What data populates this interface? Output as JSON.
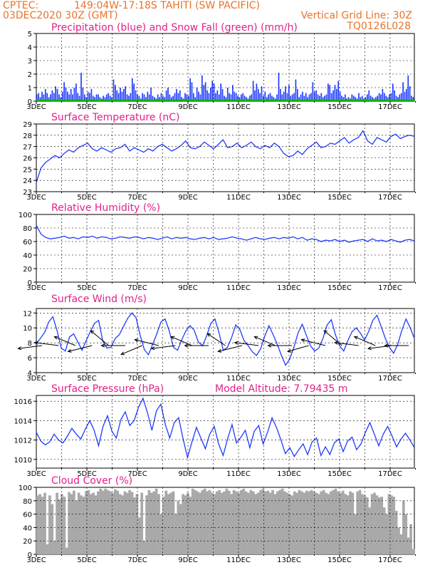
{
  "header": {
    "source": "CPTEC:",
    "location": "149:04W-17:18S  TAHITI (SW PACIFIC)",
    "run": "03DEC2020 30Z (GMT)",
    "grid_note": "Vertical Grid Line: 30Z",
    "model": "TQ0126L028"
  },
  "colors": {
    "header": "#e8742a",
    "title": "#e0218a",
    "precip": "#1f3bff",
    "snow": "#00b000",
    "line": "#1f3bff",
    "cloud": "#a9a9a9",
    "grid": "#000000"
  },
  "chart_data": [
    {
      "type": "bar",
      "title": "Precipitation (blue) and Snow Fall (green) (mm/h)",
      "x_ticks": [
        "3DEC",
        "5DEC",
        "7DEC",
        "9DEC",
        "11DEC",
        "13DEC",
        "15DEC",
        "17DEC"
      ],
      "y_ticks": [
        "0",
        "1",
        "2",
        "3",
        "4",
        "5"
      ],
      "ylim": [
        0,
        5
      ],
      "grid": true,
      "series": [
        {
          "values": [
            0.5,
            0.6,
            0.3,
            0.7,
            0.5,
            0.9,
            0.6,
            0.3,
            0.5,
            0.8,
            0.6,
            1.1,
            0.9,
            0.5,
            0.3,
            0.7,
            1.4,
            1.0,
            0.7,
            0.5,
            0.9,
            0.5,
            1.0,
            1.3,
            0.6,
            0.4,
            2.1,
            1.0,
            0.5,
            0.3,
            0.7,
            0.6,
            0.9,
            0.4,
            0.3,
            0.5,
            0.5,
            0.3,
            0.2,
            0.4,
            0.3,
            0.5,
            0.6,
            0.4,
            0.3,
            1.6,
            1.2,
            0.8,
            0.6,
            1.0,
            0.7,
            0.9,
            1.1,
            0.5,
            0.4,
            0.6,
            1.7,
            1.3,
            0.8,
            0.5,
            0.4,
            0.2,
            0.6,
            0.5,
            0.3,
            0.7,
            0.5,
            1.0,
            0.4,
            0.3,
            0.2,
            0.5,
            0.3,
            0.6,
            0.4,
            0.3,
            0.8,
            1.0,
            0.5,
            0.3,
            0.4,
            0.6,
            0.9,
            0.6,
            0.8,
            0.3,
            0.2,
            0.6,
            0.5,
            0.4,
            1.7,
            1.4,
            0.6,
            0.3,
            1.0,
            0.7,
            0.5,
            1.9,
            1.2,
            1.4,
            0.8,
            0.6,
            1.0,
            1.5,
            1.3,
            0.6,
            0.8,
            0.5,
            1.3,
            0.9,
            0.4,
            0.3,
            1.0,
            0.6,
            0.5,
            1.2,
            0.7,
            0.6,
            0.4,
            0.3,
            0.5,
            0.6,
            0.4,
            0.3,
            0.2,
            0.4,
            0.5,
            1.5,
            0.8,
            1.3,
            0.9,
            0.6,
            1.1,
            0.4,
            0.7,
            0.3,
            0.5,
            0.6,
            0.4,
            0.3,
            0.2,
            0.5,
            2.1,
            0.9,
            0.5,
            0.7,
            1.1,
            0.6,
            1.2,
            0.4,
            0.5,
            0.6,
            1.6,
            0.9,
            0.3,
            0.5,
            0.7,
            0.4,
            0.6,
            0.3,
            0.5,
            0.6,
            1.4,
            0.7,
            0.8,
            0.5,
            0.4,
            0.6,
            0.3,
            0.4,
            0.5,
            1.3,
            1.2,
            0.6,
            0.8,
            1.2,
            0.9,
            1.5,
            0.7,
            0.4,
            0.3,
            0.5,
            0.2,
            0.3,
            0.2,
            0.5,
            0.4,
            0.3,
            0.2,
            0.6,
            0.3,
            0.4,
            0.2,
            0.3,
            0.5,
            0.8,
            0.4,
            0.3,
            0.2,
            0.3,
            0.4,
            0.6,
            0.5,
            0.9,
            0.6,
            0.4,
            0.3,
            0.5,
            0.6,
            1.3,
            0.8,
            0.4,
            0.3,
            0.5,
            0.6,
            1.4,
            0.7,
            0.9,
            1.9,
            1.1,
            0.4,
            0.3
          ]
        }
      ]
    },
    {
      "type": "line",
      "title": "Surface Temperature (nC)",
      "x_ticks": [
        "3DEC",
        "5DEC",
        "7DEC",
        "9DEC",
        "11DEC",
        "13DEC",
        "15DEC",
        "17DEC"
      ],
      "y_ticks": [
        "23",
        "24",
        "25",
        "26",
        "27",
        "28",
        "29"
      ],
      "ylim": [
        23,
        29
      ],
      "grid": true,
      "series": [
        {
          "values": [
            23.8,
            25.1,
            25.6,
            25.9,
            26.2,
            26.0,
            26.4,
            26.7,
            26.5,
            26.9,
            27.1,
            27.3,
            26.8,
            26.6,
            26.9,
            26.7,
            26.5,
            26.8,
            26.9,
            27.2,
            26.6,
            26.9,
            26.7,
            26.5,
            26.8,
            26.6,
            27.0,
            27.2,
            26.9,
            26.6,
            26.8,
            27.1,
            27.5,
            26.9,
            26.8,
            27.0,
            27.4,
            27.1,
            26.8,
            27.2,
            27.6,
            26.9,
            27.0,
            27.3,
            26.9,
            27.1,
            27.4,
            27.0,
            26.8,
            27.1,
            26.9,
            27.3,
            27.0,
            26.4,
            26.1,
            26.2,
            26.6,
            26.3,
            26.8,
            27.1,
            27.4,
            26.9,
            27.0,
            27.3,
            27.2,
            27.5,
            27.8,
            27.3,
            27.6,
            27.8,
            28.4,
            27.5,
            27.2,
            27.8,
            27.6,
            27.4,
            27.9,
            28.1,
            27.7,
            27.9,
            28.0,
            27.9
          ]
        }
      ]
    },
    {
      "type": "line",
      "title": "Relative Humidity (%)",
      "x_ticks": [
        "3DEC",
        "5DEC",
        "7DEC",
        "9DEC",
        "11DEC",
        "13DEC",
        "15DEC",
        "17DEC"
      ],
      "y_ticks": [
        "0",
        "20",
        "40",
        "60",
        "80",
        "100"
      ],
      "ylim": [
        0,
        100
      ],
      "grid": true,
      "series": [
        {
          "values": [
            84,
            71,
            66,
            64,
            65,
            66,
            68,
            65,
            66,
            64,
            67,
            66,
            68,
            65,
            67,
            66,
            64,
            65,
            67,
            66,
            65,
            67,
            66,
            64,
            66,
            65,
            63,
            65,
            67,
            64,
            66,
            65,
            66,
            64,
            63,
            65,
            66,
            64,
            66,
            63,
            64,
            65,
            67,
            65,
            64,
            62,
            64,
            66,
            64,
            63,
            65,
            66,
            64,
            66,
            65,
            67,
            64,
            66,
            62,
            64,
            63,
            60,
            62,
            61,
            63,
            60,
            62,
            59,
            61,
            62,
            63,
            60,
            64,
            61,
            62,
            60,
            63,
            61,
            59,
            62,
            63,
            61
          ]
        }
      ]
    },
    {
      "type": "line",
      "title": "Surface Wind (m/s)",
      "x_ticks": [
        "3DEC",
        "5DEC",
        "7DEC",
        "9DEC",
        "11DEC",
        "13DEC",
        "15DEC",
        "17DEC"
      ],
      "y_ticks": [
        "4",
        "6",
        "8",
        "10",
        "12"
      ],
      "ylim": [
        4,
        12.6
      ],
      "grid": true,
      "series": [
        {
          "values": [
            7.9,
            8.6,
            9.4,
            10.8,
            11.5,
            9.6,
            7.3,
            6.9,
            8.8,
            9.2,
            8.1,
            7.0,
            8.3,
            9.5,
            10.6,
            11.0,
            8.2,
            7.3,
            7.4,
            8.6,
            9.1,
            10.2,
            11.3,
            12.0,
            11.4,
            9.0,
            7.1,
            6.4,
            7.8,
            9.2,
            10.8,
            11.2,
            9.6,
            7.4,
            7.0,
            8.4,
            9.6,
            10.3,
            9.7,
            8.1,
            7.6,
            8.9,
            10.6,
            11.2,
            9.3,
            7.0,
            7.4,
            8.7,
            10.4,
            9.8,
            8.3,
            7.6,
            6.8,
            6.3,
            7.2,
            8.9,
            10.3,
            9.1,
            7.8,
            6.3,
            5.0,
            5.8,
            7.4,
            9.3,
            10.5,
            9.0,
            7.6,
            6.9,
            7.3,
            8.6,
            10.4,
            11.1,
            9.1,
            7.6,
            6.9,
            8.3,
            9.5,
            10.0,
            9.3,
            8.4,
            9.5,
            11.0,
            11.7,
            10.2,
            8.6,
            7.4,
            6.6,
            7.8,
            9.7,
            11.2,
            10.0,
            8.6
          ]
        }
      ],
      "vectors": [
        {
          "u": -8,
          "v": -1
        },
        {
          "u": -8,
          "v": 1
        },
        {
          "u": -7,
          "v": 3
        },
        {
          "u": -8,
          "v": -2
        },
        {
          "u": -6,
          "v": 5
        },
        {
          "u": -8,
          "v": 0
        },
        {
          "u": -7,
          "v": -3
        },
        {
          "u": -8,
          "v": 2
        },
        {
          "u": -8,
          "v": -1
        },
        {
          "u": -7,
          "v": 3
        },
        {
          "u": -8,
          "v": 0
        },
        {
          "u": -6,
          "v": 4
        },
        {
          "u": -8,
          "v": -2
        },
        {
          "u": -8,
          "v": 1
        },
        {
          "u": -7,
          "v": 3
        },
        {
          "u": -8,
          "v": 0
        },
        {
          "u": -7,
          "v": -2
        },
        {
          "u": -8,
          "v": 2
        },
        {
          "u": -6,
          "v": 5
        },
        {
          "u": -8,
          "v": 1
        },
        {
          "u": -7,
          "v": 3
        },
        {
          "u": -8,
          "v": -1
        },
        {
          "u": -8,
          "v": 0
        }
      ]
    },
    {
      "type": "line",
      "title": "Surface Pressure (hPa)",
      "annotation": "Model Altitude: 7.79435 m",
      "x_ticks": [
        "3DEC",
        "5DEC",
        "7DEC",
        "9DEC",
        "11DEC",
        "13DEC",
        "15DEC",
        "17DEC"
      ],
      "y_ticks": [
        "1010",
        "1012",
        "1014",
        "1016"
      ],
      "ylim": [
        1009.1,
        1016.6
      ],
      "grid": true,
      "series": [
        {
          "values": [
            1012.8,
            1011.9,
            1011.5,
            1011.8,
            1012.6,
            1012.0,
            1011.7,
            1012.4,
            1013.2,
            1012.6,
            1012.1,
            1013.1,
            1014.0,
            1013.0,
            1011.4,
            1013.4,
            1014.5,
            1012.9,
            1012.2,
            1014.1,
            1014.9,
            1013.5,
            1014.0,
            1015.4,
            1016.3,
            1014.8,
            1013.0,
            1015.0,
            1015.7,
            1013.6,
            1012.2,
            1013.8,
            1014.3,
            1012.1,
            1010.2,
            1011.8,
            1013.3,
            1012.2,
            1011.1,
            1012.6,
            1013.4,
            1011.6,
            1010.4,
            1012.1,
            1013.6,
            1011.7,
            1012.3,
            1013.0,
            1011.2,
            1012.9,
            1013.5,
            1011.6,
            1012.8,
            1014.3,
            1013.3,
            1012.0,
            1010.6,
            1011.2,
            1010.3,
            1011.0,
            1011.6,
            1010.5,
            1011.8,
            1012.2,
            1010.4,
            1011.3,
            1010.5,
            1011.7,
            1012.1,
            1010.8,
            1011.9,
            1012.3,
            1011.0,
            1011.6,
            1012.8,
            1013.8,
            1012.6,
            1011.4,
            1012.6,
            1013.4,
            1012.4,
            1011.3,
            1012.1,
            1012.7,
            1012.0,
            1011.2
          ]
        }
      ]
    },
    {
      "type": "bar",
      "title": "Cloud Cover (%)",
      "x_ticks": [
        "3DEC",
        "5DEC",
        "7DEC",
        "9DEC",
        "11DEC",
        "13DEC",
        "15DEC",
        "17DEC"
      ],
      "y_ticks": [
        "0",
        "20",
        "40",
        "60",
        "80",
        "100"
      ],
      "ylim": [
        0,
        100
      ],
      "grid": true,
      "series": [
        {
          "values": [
            88,
            90,
            86,
            92,
            15,
            88,
            75,
            20,
            92,
            82,
            90,
            86,
            10,
            93,
            90,
            95,
            80,
            92,
            88,
            86,
            94,
            96,
            90,
            92,
            88,
            94,
            98,
            95,
            98,
            96,
            94,
            92,
            97,
            95,
            90,
            88,
            94,
            92,
            96,
            93,
            85,
            90,
            55,
            92,
            20,
            88,
            96,
            92,
            94,
            98,
            90,
            60,
            86,
            95,
            90,
            92,
            94,
            60,
            80,
            75,
            90,
            88,
            92,
            86,
            98,
            96,
            94,
            92,
            96,
            98,
            94,
            96,
            92,
            90,
            94,
            96,
            92,
            94,
            98,
            95,
            90,
            96,
            94,
            92,
            96,
            98,
            94,
            92,
            96,
            94,
            90,
            92,
            96,
            98,
            94,
            95,
            92,
            96,
            90,
            94,
            96,
            98,
            94,
            92,
            90,
            88,
            94,
            92,
            96,
            94,
            92,
            95,
            94,
            96,
            94,
            92,
            90,
            94,
            96,
            92,
            90,
            94,
            96,
            98,
            94,
            92,
            95,
            90,
            88,
            94,
            92,
            60,
            94,
            96,
            90,
            88,
            85,
            70,
            90,
            92,
            88,
            85,
            86,
            70,
            60,
            90,
            88,
            86,
            65,
            40,
            30,
            80,
            60,
            25,
            45,
            8
          ]
        }
      ]
    }
  ]
}
